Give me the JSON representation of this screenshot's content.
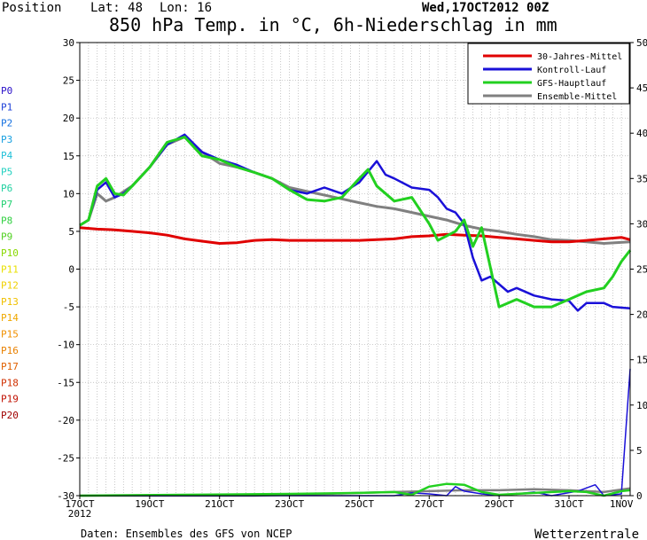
{
  "header": {
    "position_label": "Position",
    "lat_label": "Lat: 48",
    "lon_label": "Lon: 16",
    "run_label": "Wed,17OCT2012 00Z",
    "title": "850 hPa Temp. in °C, 6h-Niederschlag in mm"
  },
  "footer": {
    "source": "Daten: Ensembles des GFS von NCEP",
    "brand": "Wetterzentrale"
  },
  "chart_data": {
    "type": "line",
    "title": "850 hPa Temp. in °C, 6h-Niederschlag in mm",
    "y_left": {
      "range": [
        -30,
        30
      ],
      "ticks": [
        30,
        25,
        20,
        15,
        10,
        5,
        0,
        -5,
        -10,
        -15,
        -20,
        -25,
        -30
      ],
      "label": ""
    },
    "y_right": {
      "range": [
        0,
        50
      ],
      "ticks": [
        50,
        45,
        40,
        35,
        30,
        25,
        20,
        15,
        10,
        5,
        0
      ],
      "label": ""
    },
    "x_axis": {
      "tick_labels": [
        "17OCT",
        "19OCT",
        "21OCT",
        "23OCT",
        "25OCT",
        "27OCT",
        "29OCT",
        "31OCT",
        "1NOV"
      ],
      "year_label": "2012",
      "days": [
        0,
        2,
        4,
        6,
        8,
        10,
        12,
        14,
        15.5
      ],
      "range_days": [
        0,
        15.75
      ],
      "minor_step_hours": 6
    },
    "grid": true,
    "legend_position": "top-right",
    "legend": [
      {
        "label": "30-Jahres-Mittel",
        "color": "#e00000"
      },
      {
        "label": "Kontroll-Lauf",
        "color": "#1a10d8"
      },
      {
        "label": "GFS-Hauptlauf",
        "color": "#22d020"
      },
      {
        "label": "Ensemble-Mittel",
        "color": "#808080"
      }
    ],
    "members": [
      {
        "name": "P0",
        "color": "#2a10c8"
      },
      {
        "name": "P1",
        "color": "#1e40d8"
      },
      {
        "name": "P2",
        "color": "#1470e0"
      },
      {
        "name": "P3",
        "color": "#18a0e0"
      },
      {
        "name": "P4",
        "color": "#20c0d8"
      },
      {
        "name": "P5",
        "color": "#20d0c0"
      },
      {
        "name": "P6",
        "color": "#20d0a0"
      },
      {
        "name": "P7",
        "color": "#20d070"
      },
      {
        "name": "P8",
        "color": "#30d040"
      },
      {
        "name": "P9",
        "color": "#50d020"
      },
      {
        "name": "P10",
        "color": "#88d800"
      },
      {
        "name": "P11",
        "color": "#e8e000"
      },
      {
        "name": "P12",
        "color": "#f0d000"
      },
      {
        "name": "P13",
        "color": "#f0c000"
      },
      {
        "name": "P14",
        "color": "#f0a800"
      },
      {
        "name": "P15",
        "color": "#f09000"
      },
      {
        "name": "P16",
        "color": "#e88000"
      },
      {
        "name": "P17",
        "color": "#e06000"
      },
      {
        "name": "P18",
        "color": "#d03000"
      },
      {
        "name": "P19",
        "color": "#c01000"
      },
      {
        "name": "P20",
        "color": "#a00000"
      }
    ],
    "series": [
      {
        "name": "30-Jahres-Mittel",
        "color": "#e00000",
        "width": 3,
        "axis": "left",
        "points": [
          [
            0,
            5.5
          ],
          [
            0.5,
            5.3
          ],
          [
            1,
            5.2
          ],
          [
            1.5,
            5.0
          ],
          [
            2,
            4.8
          ],
          [
            2.5,
            4.5
          ],
          [
            3,
            4.0
          ],
          [
            3.5,
            3.7
          ],
          [
            4,
            3.4
          ],
          [
            4.5,
            3.5
          ],
          [
            5,
            3.8
          ],
          [
            5.5,
            3.9
          ],
          [
            6,
            3.8
          ],
          [
            6.5,
            3.8
          ],
          [
            7,
            3.8
          ],
          [
            7.5,
            3.8
          ],
          [
            8,
            3.8
          ],
          [
            8.5,
            3.9
          ],
          [
            9,
            4.0
          ],
          [
            9.5,
            4.3
          ],
          [
            10,
            4.4
          ],
          [
            10.5,
            4.6
          ],
          [
            11,
            4.5
          ],
          [
            11.5,
            4.4
          ],
          [
            12,
            4.2
          ],
          [
            12.5,
            4.0
          ],
          [
            13,
            3.8
          ],
          [
            13.5,
            3.6
          ],
          [
            14,
            3.6
          ],
          [
            14.5,
            3.8
          ],
          [
            15,
            4.0
          ],
          [
            15.5,
            4.2
          ],
          [
            15.75,
            3.9
          ]
        ]
      },
      {
        "name": "Kontroll-Lauf",
        "color": "#1a10d8",
        "width": 2.5,
        "axis": "left",
        "points": [
          [
            0,
            5.8
          ],
          [
            0.25,
            6.5
          ],
          [
            0.5,
            10.5
          ],
          [
            0.75,
            11.5
          ],
          [
            1,
            9.5
          ],
          [
            1.25,
            10
          ],
          [
            1.5,
            11
          ],
          [
            2,
            13.5
          ],
          [
            2.5,
            16.5
          ],
          [
            3,
            17.8
          ],
          [
            3.5,
            15.5
          ],
          [
            4,
            14.5
          ],
          [
            4.5,
            13.8
          ],
          [
            5,
            12.8
          ],
          [
            5.5,
            12.0
          ],
          [
            6,
            10.5
          ],
          [
            6.5,
            10.0
          ],
          [
            7,
            10.8
          ],
          [
            7.5,
            10.0
          ],
          [
            8,
            11.5
          ],
          [
            8.5,
            14.3
          ],
          [
            8.75,
            12.5
          ],
          [
            9,
            12
          ],
          [
            9.5,
            10.8
          ],
          [
            10,
            10.5
          ],
          [
            10.25,
            9.5
          ],
          [
            10.5,
            8
          ],
          [
            10.75,
            7.5
          ],
          [
            11,
            6
          ],
          [
            11.25,
            1.5
          ],
          [
            11.5,
            -1.5
          ],
          [
            11.75,
            -1
          ],
          [
            12,
            -2
          ],
          [
            12.25,
            -3
          ],
          [
            12.5,
            -2.5
          ],
          [
            13,
            -3.5
          ],
          [
            13.5,
            -4
          ],
          [
            14,
            -4.2
          ],
          [
            14.25,
            -5.5
          ],
          [
            14.5,
            -4.5
          ],
          [
            15,
            -4.5
          ],
          [
            15.25,
            -5
          ],
          [
            15.75,
            -5.2
          ]
        ]
      },
      {
        "name": "GFS-Hauptlauf",
        "color": "#22d020",
        "width": 3,
        "axis": "left",
        "points": [
          [
            0,
            5.8
          ],
          [
            0.25,
            6.5
          ],
          [
            0.5,
            11
          ],
          [
            0.75,
            12
          ],
          [
            1,
            10
          ],
          [
            1.25,
            9.8
          ],
          [
            1.5,
            11
          ],
          [
            2,
            13.5
          ],
          [
            2.5,
            16.8
          ],
          [
            3,
            17.5
          ],
          [
            3.5,
            15
          ],
          [
            4,
            14.5
          ],
          [
            4.5,
            13.5
          ],
          [
            5,
            12.8
          ],
          [
            5.5,
            12
          ],
          [
            6,
            10.5
          ],
          [
            6.5,
            9.2
          ],
          [
            7,
            9
          ],
          [
            7.5,
            9.5
          ],
          [
            8,
            12
          ],
          [
            8.25,
            13.2
          ],
          [
            8.5,
            11
          ],
          [
            9,
            9
          ],
          [
            9.5,
            9.5
          ],
          [
            10,
            6
          ],
          [
            10.25,
            3.8
          ],
          [
            10.75,
            5
          ],
          [
            11,
            6.5
          ],
          [
            11.25,
            3
          ],
          [
            11.5,
            5.5
          ],
          [
            12,
            -5
          ],
          [
            12.5,
            -4
          ],
          [
            13,
            -5
          ],
          [
            13.5,
            -5
          ],
          [
            14,
            -4
          ],
          [
            14.5,
            -3
          ],
          [
            15,
            -2.5
          ],
          [
            15.25,
            -1
          ],
          [
            15.5,
            1
          ],
          [
            15.75,
            2.5
          ]
        ]
      },
      {
        "name": "Ensemble-Mittel",
        "color": "#808080",
        "width": 3,
        "axis": "left",
        "points": [
          [
            0,
            5.8
          ],
          [
            0.25,
            6.5
          ],
          [
            0.5,
            10
          ],
          [
            0.75,
            9
          ],
          [
            1,
            9.5
          ],
          [
            1.5,
            11
          ],
          [
            2,
            13.5
          ],
          [
            2.5,
            16.5
          ],
          [
            3,
            17.5
          ],
          [
            3.5,
            15.5
          ],
          [
            4,
            14
          ],
          [
            4.5,
            13.5
          ],
          [
            5,
            12.8
          ],
          [
            5.5,
            12
          ],
          [
            6,
            10.8
          ],
          [
            6.5,
            10.3
          ],
          [
            7,
            9.8
          ],
          [
            7.5,
            9.3
          ],
          [
            8,
            8.8
          ],
          [
            8.5,
            8.3
          ],
          [
            9,
            8
          ],
          [
            9.5,
            7.5
          ],
          [
            10,
            7
          ],
          [
            10.5,
            6.5
          ],
          [
            11,
            5.8
          ],
          [
            11.5,
            5.3
          ],
          [
            12,
            5
          ],
          [
            12.5,
            4.6
          ],
          [
            13,
            4.3
          ],
          [
            13.5,
            3.9
          ],
          [
            14,
            3.8
          ],
          [
            14.5,
            3.6
          ],
          [
            15,
            3.4
          ],
          [
            15.75,
            3.6
          ]
        ]
      },
      {
        "name": "Kontroll-Lauf Niederschlag",
        "color": "#1a10d8",
        "width": 1.5,
        "axis": "right",
        "points": [
          [
            0,
            0
          ],
          [
            9,
            0
          ],
          [
            9.5,
            0.3
          ],
          [
            10,
            0.2
          ],
          [
            10.5,
            0
          ],
          [
            10.75,
            1
          ],
          [
            11,
            0.5
          ],
          [
            11.5,
            0.2
          ],
          [
            12,
            0
          ],
          [
            13,
            0.4
          ],
          [
            13.5,
            0
          ],
          [
            14.25,
            0.5
          ],
          [
            14.75,
            1.2
          ],
          [
            15,
            0
          ],
          [
            15.5,
            0.2
          ],
          [
            15.75,
            14
          ]
        ]
      },
      {
        "name": "GFS-Hauptlauf Niederschlag",
        "color": "#22d020",
        "width": 2.5,
        "axis": "right",
        "points": [
          [
            0,
            0
          ],
          [
            6,
            0.2
          ],
          [
            8,
            0.3
          ],
          [
            9,
            0.4
          ],
          [
            9.5,
            0.1
          ],
          [
            10,
            1.0
          ],
          [
            10.5,
            1.3
          ],
          [
            11,
            1.2
          ],
          [
            11.5,
            0.4
          ],
          [
            12,
            0.1
          ],
          [
            13,
            0.3
          ],
          [
            14,
            0.5
          ],
          [
            14.5,
            0.4
          ],
          [
            15,
            0
          ],
          [
            15.5,
            0.5
          ],
          [
            15.75,
            0.6
          ]
        ]
      },
      {
        "name": "Ensemble-Mittel Niederschlag",
        "color": "#808080",
        "width": 2.5,
        "axis": "right",
        "points": [
          [
            0,
            0
          ],
          [
            5,
            0
          ],
          [
            7,
            0.2
          ],
          [
            8,
            0.3
          ],
          [
            9,
            0.4
          ],
          [
            10,
            0.5
          ],
          [
            11,
            0.6
          ],
          [
            12,
            0.6
          ],
          [
            13,
            0.7
          ],
          [
            14,
            0.6
          ],
          [
            15,
            0.4
          ],
          [
            15.75,
            0.8
          ]
        ]
      }
    ]
  }
}
